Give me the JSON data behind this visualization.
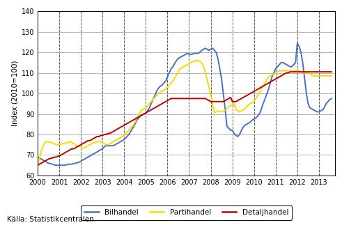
{
  "ylabel": "Index (2010=100)",
  "source_text": "Källa: Statistikcentralen",
  "ylim": [
    60,
    140
  ],
  "yticks": [
    60,
    70,
    80,
    90,
    100,
    110,
    120,
    130,
    140
  ],
  "xlim": [
    2000.0,
    2013.75
  ],
  "xticks": [
    2000,
    2001,
    2002,
    2003,
    2004,
    2005,
    2006,
    2007,
    2008,
    2009,
    2010,
    2011,
    2012,
    2013
  ],
  "line_colors": {
    "Bilhandel": "#4472C4",
    "Partihandel": "#FFD700",
    "Detaljhandel": "#C00000"
  },
  "legend_labels": [
    "Bilhandel",
    "Partihandel",
    "Detaljhandel"
  ],
  "background_color": "#FFFFFF",
  "Bilhandel_x": [
    2000.0,
    2000.08,
    2000.17,
    2000.25,
    2000.33,
    2000.42,
    2000.5,
    2000.58,
    2000.67,
    2000.75,
    2000.83,
    2000.92,
    2001.0,
    2001.08,
    2001.17,
    2001.25,
    2001.33,
    2001.42,
    2001.5,
    2001.58,
    2001.67,
    2001.75,
    2001.83,
    2001.92,
    2002.0,
    2002.08,
    2002.17,
    2002.25,
    2002.33,
    2002.42,
    2002.5,
    2002.58,
    2002.67,
    2002.75,
    2002.83,
    2002.92,
    2003.0,
    2003.08,
    2003.17,
    2003.25,
    2003.33,
    2003.42,
    2003.5,
    2003.58,
    2003.67,
    2003.75,
    2003.83,
    2003.92,
    2004.0,
    2004.08,
    2004.17,
    2004.25,
    2004.33,
    2004.42,
    2004.5,
    2004.58,
    2004.67,
    2004.75,
    2004.83,
    2004.92,
    2005.0,
    2005.08,
    2005.17,
    2005.25,
    2005.33,
    2005.42,
    2005.5,
    2005.58,
    2005.67,
    2005.75,
    2005.83,
    2005.92,
    2006.0,
    2006.08,
    2006.17,
    2006.25,
    2006.33,
    2006.42,
    2006.5,
    2006.58,
    2006.67,
    2006.75,
    2006.83,
    2006.92,
    2007.0,
    2007.08,
    2007.17,
    2007.25,
    2007.33,
    2007.42,
    2007.5,
    2007.58,
    2007.67,
    2007.75,
    2007.83,
    2007.92,
    2008.0,
    2008.08,
    2008.17,
    2008.25,
    2008.33,
    2008.42,
    2008.5,
    2008.58,
    2008.67,
    2008.75,
    2008.83,
    2008.92,
    2009.0,
    2009.08,
    2009.17,
    2009.25,
    2009.33,
    2009.42,
    2009.5,
    2009.58,
    2009.67,
    2009.75,
    2009.83,
    2009.92,
    2010.0,
    2010.08,
    2010.17,
    2010.25,
    2010.33,
    2010.42,
    2010.5,
    2010.58,
    2010.67,
    2010.75,
    2010.83,
    2010.92,
    2011.0,
    2011.08,
    2011.17,
    2011.25,
    2011.33,
    2011.42,
    2011.5,
    2011.58,
    2011.67,
    2011.75,
    2011.83,
    2011.92,
    2012.0,
    2012.08,
    2012.17,
    2012.25,
    2012.33,
    2012.42,
    2012.5,
    2012.58,
    2012.67,
    2012.75,
    2012.83,
    2012.92,
    2013.0,
    2013.08,
    2013.17,
    2013.25,
    2013.33,
    2013.42,
    2013.5,
    2013.58
  ],
  "Bilhandel_y": [
    69.0,
    68.5,
    68.0,
    67.5,
    67.0,
    66.5,
    66.0,
    65.8,
    65.5,
    65.2,
    65.0,
    65.0,
    65.0,
    65.0,
    65.0,
    65.0,
    65.2,
    65.5,
    65.5,
    65.5,
    65.8,
    66.0,
    66.2,
    66.5,
    67.0,
    67.5,
    68.0,
    68.5,
    69.0,
    69.5,
    70.0,
    70.5,
    71.0,
    71.5,
    72.0,
    72.5,
    73.0,
    74.0,
    74.5,
    74.5,
    74.5,
    74.5,
    74.5,
    75.0,
    75.5,
    76.0,
    76.5,
    77.0,
    77.5,
    78.5,
    79.5,
    80.5,
    82.0,
    83.5,
    85.0,
    87.0,
    88.0,
    89.0,
    89.5,
    90.0,
    90.5,
    91.5,
    93.0,
    95.0,
    97.0,
    99.0,
    101.0,
    102.5,
    103.5,
    104.0,
    105.0,
    106.0,
    108.0,
    110.0,
    112.0,
    113.0,
    114.5,
    116.0,
    117.0,
    117.5,
    118.0,
    118.5,
    119.0,
    119.5,
    119.0,
    119.0,
    119.2,
    119.5,
    119.5,
    119.5,
    120.0,
    121.0,
    121.5,
    122.0,
    121.5,
    121.0,
    121.5,
    122.0,
    121.0,
    120.0,
    117.0,
    112.0,
    107.0,
    100.0,
    92.0,
    84.0,
    83.0,
    82.0,
    82.0,
    80.5,
    79.5,
    79.0,
    80.0,
    82.0,
    83.5,
    84.5,
    85.0,
    85.5,
    86.0,
    87.0,
    87.5,
    88.0,
    89.0,
    90.0,
    92.0,
    95.0,
    97.0,
    99.5,
    102.0,
    105.0,
    108.0,
    110.0,
    112.0,
    113.0,
    114.0,
    115.0,
    115.0,
    114.5,
    114.0,
    113.5,
    113.0,
    113.0,
    114.0,
    115.0,
    124.5,
    123.0,
    120.0,
    115.0,
    108.0,
    100.0,
    95.0,
    93.0,
    92.5,
    92.0,
    91.5,
    91.0,
    91.0,
    91.5,
    92.0,
    93.0,
    95.0,
    96.0,
    97.0,
    97.5
  ],
  "Partihandel_x": [
    2000.0,
    2000.08,
    2000.17,
    2000.25,
    2000.33,
    2000.42,
    2000.5,
    2000.58,
    2000.67,
    2000.75,
    2000.83,
    2000.92,
    2001.0,
    2001.08,
    2001.17,
    2001.25,
    2001.33,
    2001.42,
    2001.5,
    2001.58,
    2001.67,
    2001.75,
    2001.83,
    2001.92,
    2002.0,
    2002.08,
    2002.17,
    2002.25,
    2002.33,
    2002.42,
    2002.5,
    2002.58,
    2002.67,
    2002.75,
    2002.83,
    2002.92,
    2003.0,
    2003.08,
    2003.17,
    2003.25,
    2003.33,
    2003.42,
    2003.5,
    2003.58,
    2003.67,
    2003.75,
    2003.83,
    2003.92,
    2004.0,
    2004.08,
    2004.17,
    2004.25,
    2004.33,
    2004.42,
    2004.5,
    2004.58,
    2004.67,
    2004.75,
    2004.83,
    2004.92,
    2005.0,
    2005.08,
    2005.17,
    2005.25,
    2005.33,
    2005.42,
    2005.5,
    2005.58,
    2005.67,
    2005.75,
    2005.83,
    2005.92,
    2006.0,
    2006.08,
    2006.17,
    2006.25,
    2006.33,
    2006.42,
    2006.5,
    2006.58,
    2006.67,
    2006.75,
    2006.83,
    2006.92,
    2007.0,
    2007.08,
    2007.17,
    2007.25,
    2007.33,
    2007.42,
    2007.5,
    2007.58,
    2007.67,
    2007.75,
    2007.83,
    2007.92,
    2008.0,
    2008.08,
    2008.17,
    2008.25,
    2008.33,
    2008.42,
    2008.5,
    2008.58,
    2008.67,
    2008.75,
    2008.83,
    2008.92,
    2009.0,
    2009.08,
    2009.17,
    2009.25,
    2009.33,
    2009.42,
    2009.5,
    2009.58,
    2009.67,
    2009.75,
    2009.83,
    2009.92,
    2010.0,
    2010.08,
    2010.17,
    2010.25,
    2010.33,
    2010.42,
    2010.5,
    2010.58,
    2010.67,
    2010.75,
    2010.83,
    2010.92,
    2011.0,
    2011.08,
    2011.17,
    2011.25,
    2011.33,
    2011.42,
    2011.5,
    2011.58,
    2011.67,
    2011.75,
    2011.83,
    2011.92,
    2012.0,
    2012.08,
    2012.17,
    2012.25,
    2012.33,
    2012.42,
    2012.5,
    2012.58,
    2012.67,
    2012.75,
    2012.83,
    2012.92,
    2013.0,
    2013.08,
    2013.17,
    2013.25,
    2013.33,
    2013.42,
    2013.5,
    2013.58
  ],
  "Partihandel_y": [
    65.0,
    68.0,
    72.0,
    74.0,
    76.0,
    76.5,
    76.5,
    76.2,
    76.0,
    75.5,
    75.2,
    75.0,
    75.0,
    75.2,
    75.5,
    75.5,
    76.0,
    76.0,
    76.5,
    76.0,
    75.5,
    75.0,
    74.5,
    74.2,
    74.0,
    73.5,
    73.5,
    74.0,
    74.5,
    75.0,
    75.5,
    76.0,
    76.0,
    76.5,
    76.5,
    76.5,
    76.0,
    75.5,
    75.0,
    75.0,
    75.5,
    76.0,
    76.5,
    77.0,
    77.5,
    78.0,
    78.5,
    79.0,
    79.5,
    80.5,
    81.5,
    82.5,
    83.5,
    84.5,
    86.0,
    88.0,
    89.5,
    91.0,
    92.0,
    92.5,
    93.0,
    94.0,
    95.0,
    96.0,
    97.0,
    98.0,
    99.0,
    100.0,
    100.5,
    101.0,
    101.5,
    102.0,
    103.0,
    104.0,
    105.0,
    106.0,
    107.5,
    109.0,
    110.5,
    112.0,
    112.5,
    113.0,
    113.5,
    114.0,
    114.5,
    115.0,
    115.5,
    115.5,
    116.0,
    116.0,
    115.5,
    115.0,
    113.0,
    110.0,
    107.0,
    103.0,
    99.0,
    95.0,
    90.5,
    91.0,
    91.5,
    91.0,
    91.0,
    91.5,
    92.0,
    92.5,
    93.5,
    94.0,
    94.5,
    95.0,
    92.0,
    91.5,
    91.0,
    91.5,
    92.0,
    92.5,
    93.5,
    94.5,
    95.0,
    95.5,
    96.0,
    97.5,
    99.0,
    100.5,
    102.0,
    103.5,
    105.0,
    106.5,
    108.0,
    108.5,
    109.0,
    109.5,
    110.0,
    110.5,
    111.0,
    111.0,
    111.0,
    111.0,
    111.0,
    111.0,
    111.0,
    111.0,
    111.0,
    111.0,
    111.0,
    111.0,
    110.5,
    110.0,
    110.0,
    110.0,
    110.0,
    109.5,
    109.0,
    108.5,
    108.5,
    108.5,
    108.5,
    108.5,
    108.5,
    108.5,
    108.5,
    108.5,
    108.5,
    108.5
  ],
  "Detaljhandel_x": [
    2000.0,
    2000.08,
    2000.17,
    2000.25,
    2000.33,
    2000.42,
    2000.5,
    2000.58,
    2000.67,
    2000.75,
    2000.83,
    2000.92,
    2001.0,
    2001.08,
    2001.17,
    2001.25,
    2001.33,
    2001.42,
    2001.5,
    2001.58,
    2001.67,
    2001.75,
    2001.83,
    2001.92,
    2002.0,
    2002.08,
    2002.17,
    2002.25,
    2002.33,
    2002.42,
    2002.5,
    2002.58,
    2002.67,
    2002.75,
    2002.83,
    2002.92,
    2003.0,
    2003.08,
    2003.17,
    2003.25,
    2003.33,
    2003.42,
    2003.5,
    2003.58,
    2003.67,
    2003.75,
    2003.83,
    2003.92,
    2004.0,
    2004.08,
    2004.17,
    2004.25,
    2004.33,
    2004.42,
    2004.5,
    2004.58,
    2004.67,
    2004.75,
    2004.83,
    2004.92,
    2005.0,
    2005.08,
    2005.17,
    2005.25,
    2005.33,
    2005.42,
    2005.5,
    2005.58,
    2005.67,
    2005.75,
    2005.83,
    2005.92,
    2006.0,
    2006.08,
    2006.17,
    2006.25,
    2006.33,
    2006.42,
    2006.5,
    2006.58,
    2006.67,
    2006.75,
    2006.83,
    2006.92,
    2007.0,
    2007.08,
    2007.17,
    2007.25,
    2007.33,
    2007.42,
    2007.5,
    2007.58,
    2007.67,
    2007.75,
    2007.83,
    2007.92,
    2008.0,
    2008.08,
    2008.17,
    2008.25,
    2008.33,
    2008.42,
    2008.5,
    2008.58,
    2008.67,
    2008.75,
    2008.83,
    2008.92,
    2009.0,
    2009.08,
    2009.17,
    2009.25,
    2009.33,
    2009.42,
    2009.5,
    2009.58,
    2009.67,
    2009.75,
    2009.83,
    2009.92,
    2010.0,
    2010.08,
    2010.17,
    2010.25,
    2010.33,
    2010.42,
    2010.5,
    2010.58,
    2010.67,
    2010.75,
    2010.83,
    2010.92,
    2011.0,
    2011.08,
    2011.17,
    2011.25,
    2011.33,
    2011.42,
    2011.5,
    2011.58,
    2011.67,
    2011.75,
    2011.83,
    2011.92,
    2012.0,
    2012.08,
    2012.17,
    2012.25,
    2012.33,
    2012.42,
    2012.5,
    2012.58,
    2012.67,
    2012.75,
    2012.83,
    2012.92,
    2013.0,
    2013.08,
    2013.17,
    2013.25,
    2013.33,
    2013.42,
    2013.5,
    2013.58
  ],
  "Detaljhandel_y": [
    65.0,
    65.5,
    66.0,
    66.5,
    67.0,
    67.5,
    68.0,
    68.3,
    68.5,
    68.8,
    69.0,
    69.3,
    69.5,
    70.0,
    70.5,
    71.0,
    71.5,
    72.0,
    72.5,
    73.0,
    73.0,
    73.5,
    74.0,
    74.5,
    75.0,
    75.5,
    76.0,
    76.5,
    77.0,
    77.0,
    77.5,
    78.0,
    78.5,
    79.0,
    79.0,
    79.5,
    79.5,
    80.0,
    80.0,
    80.5,
    80.5,
    81.0,
    81.5,
    82.0,
    82.5,
    83.0,
    83.5,
    84.0,
    84.5,
    85.0,
    85.5,
    86.0,
    86.5,
    87.0,
    87.5,
    88.0,
    88.5,
    89.0,
    89.5,
    90.0,
    90.5,
    91.0,
    91.5,
    92.0,
    92.5,
    93.0,
    93.5,
    94.0,
    94.5,
    95.0,
    95.5,
    96.0,
    96.5,
    97.0,
    97.5,
    97.5,
    97.5,
    97.5,
    97.5,
    97.5,
    97.5,
    97.5,
    97.5,
    97.5,
    97.5,
    97.5,
    97.5,
    97.5,
    97.5,
    97.5,
    97.5,
    97.5,
    97.5,
    97.5,
    97.0,
    96.5,
    96.0,
    96.0,
    96.0,
    96.0,
    96.0,
    96.0,
    96.0,
    96.0,
    96.5,
    97.0,
    97.5,
    98.0,
    96.0,
    96.0,
    96.0,
    96.5,
    97.0,
    97.5,
    98.0,
    98.5,
    99.0,
    99.5,
    100.0,
    100.5,
    101.0,
    101.5,
    102.0,
    102.5,
    103.0,
    103.5,
    104.0,
    104.5,
    105.0,
    105.5,
    106.0,
    106.5,
    107.0,
    107.5,
    108.0,
    108.5,
    109.0,
    109.5,
    110.0,
    110.0,
    110.5,
    110.5,
    110.5,
    110.5,
    110.5,
    110.5,
    110.5,
    110.5,
    110.5,
    110.5,
    110.5,
    110.5,
    110.5,
    110.5,
    110.5,
    110.5,
    110.5,
    110.5,
    110.5,
    110.5,
    110.5,
    110.5,
    110.5,
    110.5
  ]
}
